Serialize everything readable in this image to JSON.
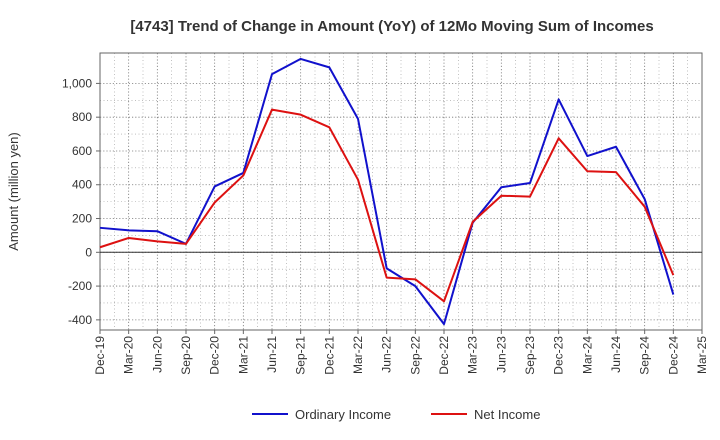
{
  "chart_data": {
    "type": "line",
    "title": "[4743]  Trend of Change in Amount (YoY) of 12Mo Moving Sum of Incomes",
    "xlabel": "",
    "ylabel": "Amount (million yen)",
    "categories": [
      "Dec-19",
      "Mar-20",
      "Jun-20",
      "Sep-20",
      "Dec-20",
      "Mar-21",
      "Jun-21",
      "Sep-21",
      "Dec-21",
      "Mar-22",
      "Jun-22",
      "Sep-22",
      "Dec-22",
      "Mar-23",
      "Jun-23",
      "Sep-23",
      "Dec-23",
      "Mar-24",
      "Jun-24",
      "Sep-24",
      "Dec-24",
      "Mar-25"
    ],
    "ylim": [
      -460,
      1180
    ],
    "yticks": [
      -400,
      -200,
      0,
      200,
      400,
      600,
      800,
      1000
    ],
    "ytick_labels": [
      "-400",
      "-200",
      "0",
      "200",
      "400",
      "600",
      "800",
      "1,000"
    ],
    "grid": true,
    "legend_position": "bottom",
    "series": [
      {
        "name": "Ordinary Income",
        "color": "#1111cc",
        "values": [
          145,
          130,
          125,
          50,
          390,
          470,
          1055,
          1145,
          1095,
          790,
          -95,
          -200,
          -425,
          175,
          385,
          410,
          905,
          570,
          625,
          315,
          -250,
          null
        ]
      },
      {
        "name": "Net Income",
        "color": "#dd1111",
        "values": [
          30,
          85,
          65,
          50,
          295,
          455,
          845,
          815,
          740,
          430,
          -150,
          -160,
          -290,
          180,
          335,
          330,
          675,
          480,
          475,
          270,
          -135,
          null
        ]
      }
    ]
  }
}
